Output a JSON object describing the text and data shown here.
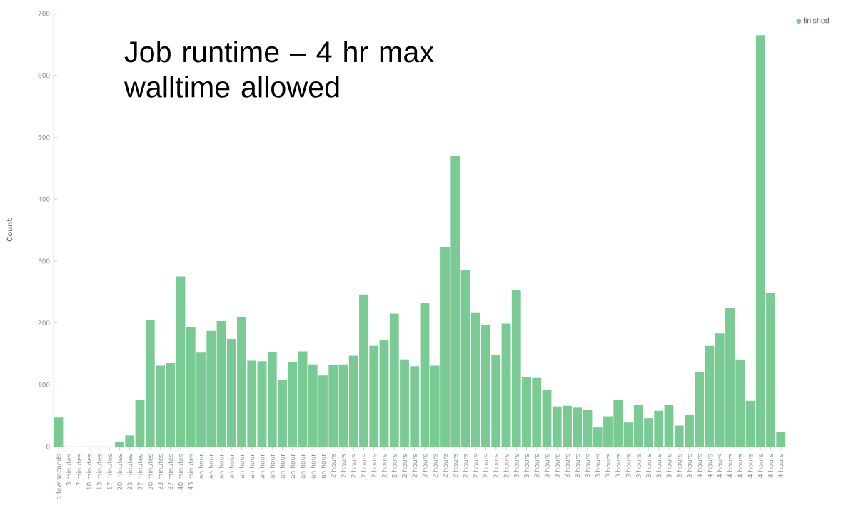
{
  "chart_data": {
    "type": "bar",
    "title": "Job runtime – 4 hr max walltime allowed",
    "ylabel": "Count",
    "categories": [
      "a few seconds",
      "3 minutes",
      "7 minutes",
      "10 minutes",
      "13 minutes",
      "17 minutes",
      "20 minutes",
      "23 minutes",
      "27 minutes",
      "30 minutes",
      "33 minutes",
      "37 minutes",
      "40 minutes",
      "43 minutes",
      "an hour",
      "an hour",
      "an hour",
      "an hour",
      "an hour",
      "an hour",
      "an hour",
      "an hour",
      "an hour",
      "an hour",
      "an hour",
      "an hour",
      "an hour",
      "2 hours",
      "2 hours",
      "2 hours",
      "2 hours",
      "2 hours",
      "2 hours",
      "2 hours",
      "2 hours",
      "2 hours",
      "2 hours",
      "2 hours",
      "2 hours",
      "2 hours",
      "2 hours",
      "2 hours",
      "2 hours",
      "2 hours",
      "2 hours",
      "3 hours",
      "3 hours",
      "3 hours",
      "3 hours",
      "3 hours",
      "3 hours",
      "3 hours",
      "3 hours",
      "3 hours",
      "3 hours",
      "3 hours",
      "3 hours",
      "3 hours",
      "3 hours",
      "3 hours",
      "3 hours",
      "3 hours",
      "3 hours",
      "4 hours",
      "4 hours",
      "4 hours",
      "4 hours",
      "4 hours",
      "4 hours",
      "4 hours",
      "4 hours",
      "4 hours"
    ],
    "series": [
      {
        "name": "finished",
        "color": "#7acb93",
        "values": [
          47,
          0,
          0,
          0,
          0,
          0,
          8,
          18,
          76,
          205,
          131,
          135,
          275,
          193,
          152,
          187,
          203,
          174,
          209,
          139,
          138,
          153,
          108,
          137,
          154,
          133,
          115,
          132,
          133,
          147,
          246,
          163,
          172,
          215,
          141,
          130,
          232,
          131,
          323,
          470,
          285,
          217,
          196,
          148,
          199,
          253,
          112,
          111,
          91,
          65,
          66,
          63,
          60,
          31,
          49,
          76,
          39,
          67,
          46,
          58,
          67,
          34,
          52,
          121,
          163,
          183,
          225,
          140,
          74,
          665,
          248,
          23
        ]
      }
    ],
    "ylim": [
      0,
      700
    ],
    "yticks": [
      0,
      100,
      200,
      300,
      400,
      500,
      600,
      700
    ],
    "grid": false,
    "legend": "top right"
  }
}
